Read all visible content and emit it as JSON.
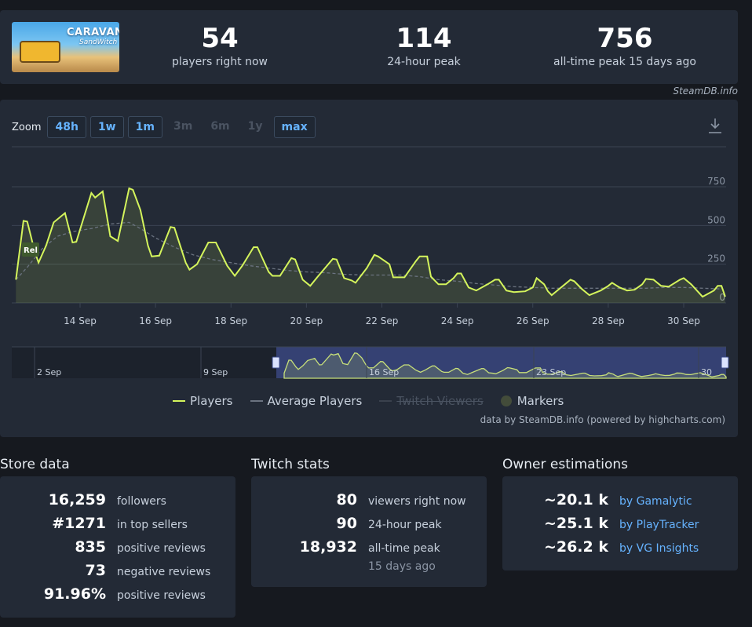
{
  "header": {
    "game_title": "CARAVAN",
    "game_subtitle": "SandWitch",
    "stats": [
      {
        "value": "54",
        "label": "players right now"
      },
      {
        "value": "114",
        "label": "24-hour peak"
      },
      {
        "value": "756",
        "label": "all-time peak 15 days ago"
      }
    ],
    "credit": "SteamDB.info"
  },
  "chart_controls": {
    "zoom_label": "Zoom",
    "buttons": [
      {
        "label": "48h",
        "enabled": true
      },
      {
        "label": "1w",
        "enabled": true
      },
      {
        "label": "1m",
        "enabled": true
      },
      {
        "label": "3m",
        "enabled": false
      },
      {
        "label": "6m",
        "enabled": false
      },
      {
        "label": "1y",
        "enabled": false
      },
      {
        "label": "max",
        "enabled": true
      }
    ]
  },
  "chart_data": {
    "type": "line",
    "y_ticks": [
      "0",
      "250",
      "500",
      "750"
    ],
    "ylim": [
      0,
      850
    ],
    "x_ticks": [
      "14 Sep",
      "16 Sep",
      "18 Sep",
      "20 Sep",
      "22 Sep",
      "24 Sep",
      "26 Sep",
      "28 Sep",
      "30 Sep"
    ],
    "release_marker": "Rel",
    "series": [
      {
        "name": "Players",
        "color": "#d4f45c",
        "points": [
          [
            12.3,
            150
          ],
          [
            12.5,
            530
          ],
          [
            12.6,
            525
          ],
          [
            12.8,
            330
          ],
          [
            12.9,
            260
          ],
          [
            13.1,
            370
          ],
          [
            13.3,
            520
          ],
          [
            13.6,
            580
          ],
          [
            13.8,
            390
          ],
          [
            13.9,
            395
          ],
          [
            14.3,
            710
          ],
          [
            14.4,
            680
          ],
          [
            14.6,
            720
          ],
          [
            14.8,
            430
          ],
          [
            15.0,
            400
          ],
          [
            15.3,
            740
          ],
          [
            15.4,
            730
          ],
          [
            15.6,
            600
          ],
          [
            15.8,
            370
          ],
          [
            15.9,
            300
          ],
          [
            16.1,
            305
          ],
          [
            16.4,
            490
          ],
          [
            16.5,
            485
          ],
          [
            16.8,
            260
          ],
          [
            16.9,
            215
          ],
          [
            17.1,
            250
          ],
          [
            17.4,
            390
          ],
          [
            17.6,
            390
          ],
          [
            17.9,
            240
          ],
          [
            18.1,
            175
          ],
          [
            18.3,
            240
          ],
          [
            18.6,
            360
          ],
          [
            18.7,
            360
          ],
          [
            19.0,
            200
          ],
          [
            19.1,
            175
          ],
          [
            19.3,
            175
          ],
          [
            19.6,
            290
          ],
          [
            19.7,
            280
          ],
          [
            19.9,
            150
          ],
          [
            20.1,
            110
          ],
          [
            20.3,
            170
          ],
          [
            20.7,
            285
          ],
          [
            20.8,
            280
          ],
          [
            21.0,
            160
          ],
          [
            21.2,
            145
          ],
          [
            21.3,
            130
          ],
          [
            21.6,
            225
          ],
          [
            21.8,
            310
          ],
          [
            21.9,
            300
          ],
          [
            22.2,
            250
          ],
          [
            22.3,
            165
          ],
          [
            22.6,
            165
          ],
          [
            22.9,
            270
          ],
          [
            23.0,
            300
          ],
          [
            23.2,
            300
          ],
          [
            23.3,
            170
          ],
          [
            23.5,
            120
          ],
          [
            23.7,
            120
          ],
          [
            23.9,
            160
          ],
          [
            24.0,
            190
          ],
          [
            24.1,
            190
          ],
          [
            24.3,
            100
          ],
          [
            24.5,
            80
          ],
          [
            24.8,
            120
          ],
          [
            25.0,
            150
          ],
          [
            25.1,
            150
          ],
          [
            25.3,
            80
          ],
          [
            25.5,
            70
          ],
          [
            25.8,
            75
          ],
          [
            26.0,
            100
          ],
          [
            26.1,
            160
          ],
          [
            26.3,
            120
          ],
          [
            26.4,
            75
          ],
          [
            26.5,
            50
          ],
          [
            26.8,
            110
          ],
          [
            27.0,
            150
          ],
          [
            27.1,
            140
          ],
          [
            27.3,
            90
          ],
          [
            27.5,
            50
          ],
          [
            27.8,
            80
          ],
          [
            28.0,
            110
          ],
          [
            28.1,
            130
          ],
          [
            28.3,
            100
          ],
          [
            28.5,
            80
          ],
          [
            28.7,
            85
          ],
          [
            28.9,
            120
          ],
          [
            29.0,
            155
          ],
          [
            29.2,
            150
          ],
          [
            29.4,
            110
          ],
          [
            29.6,
            105
          ],
          [
            29.9,
            150
          ],
          [
            30.0,
            160
          ],
          [
            30.2,
            120
          ],
          [
            30.5,
            40
          ],
          [
            30.8,
            80
          ],
          [
            30.9,
            110
          ],
          [
            31.0,
            110
          ],
          [
            31.1,
            40
          ]
        ]
      },
      {
        "name": "Average Players",
        "color": "#6b7380",
        "points": [
          [
            12.3,
            150
          ],
          [
            12.6,
            230
          ],
          [
            13.0,
            350
          ],
          [
            13.4,
            430
          ],
          [
            13.8,
            460
          ],
          [
            14.3,
            480
          ],
          [
            14.8,
            510
          ],
          [
            15.3,
            520
          ],
          [
            15.6,
            480
          ],
          [
            16.0,
            420
          ],
          [
            16.5,
            360
          ],
          [
            17.0,
            310
          ],
          [
            17.5,
            280
          ],
          [
            18.0,
            260
          ],
          [
            18.5,
            240
          ],
          [
            19.0,
            225
          ],
          [
            19.5,
            210
          ],
          [
            20.0,
            200
          ],
          [
            20.5,
            195
          ],
          [
            21.0,
            185
          ],
          [
            21.5,
            180
          ],
          [
            22.0,
            180
          ],
          [
            22.5,
            180
          ],
          [
            23.0,
            170
          ],
          [
            23.5,
            150
          ],
          [
            24.0,
            140
          ],
          [
            24.5,
            125
          ],
          [
            25.0,
            115
          ],
          [
            25.5,
            105
          ],
          [
            26.0,
            100
          ],
          [
            26.5,
            95
          ],
          [
            27.0,
            95
          ],
          [
            27.5,
            95
          ],
          [
            28.0,
            95
          ],
          [
            28.5,
            95
          ],
          [
            29.0,
            95
          ],
          [
            29.5,
            100
          ],
          [
            30.0,
            100
          ],
          [
            30.5,
            95
          ],
          [
            31.0,
            90
          ]
        ]
      },
      {
        "name": "Twitch Viewers",
        "visible": false
      }
    ]
  },
  "navigator": {
    "labels": [
      "2 Sep",
      "9 Sep",
      "16 Sep",
      "23 Sep",
      "30"
    ]
  },
  "legend": {
    "players": "Players",
    "average": "Average Players",
    "twitch": "Twitch Viewers",
    "markers": "Markers"
  },
  "powered_by": "data by SteamDB.info (powered by highcharts.com)",
  "store": {
    "title": "Store data",
    "rows": [
      {
        "value": "16,259",
        "label": "followers"
      },
      {
        "value": "#1271",
        "label": "in top sellers"
      },
      {
        "value": "835",
        "label": "positive reviews"
      },
      {
        "value": "73",
        "label": "negative reviews"
      },
      {
        "value": "91.96%",
        "label": "positive reviews"
      }
    ]
  },
  "twitch": {
    "title": "Twitch stats",
    "rows": [
      {
        "value": "80",
        "label": "viewers right now"
      },
      {
        "value": "90",
        "label": "24-hour peak"
      },
      {
        "value": "18,932",
        "label": "all-time peak"
      }
    ],
    "note": "15 days ago"
  },
  "owners": {
    "title": "Owner estimations",
    "rows": [
      {
        "value": "~20.1 k",
        "label": "by Gamalytic"
      },
      {
        "value": "~25.1 k",
        "label": "by PlayTracker"
      },
      {
        "value": "~26.2 k",
        "label": "by VG Insights"
      }
    ]
  }
}
